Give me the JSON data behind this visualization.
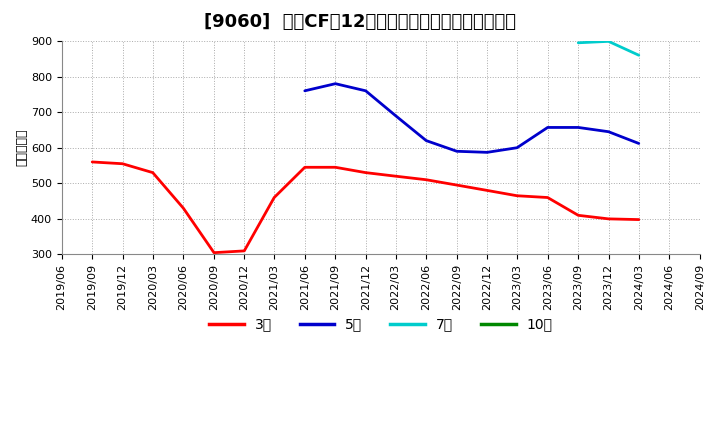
{
  "title": "[9060]  投資CFの12か月移動合計の標準偏差の推移",
  "ylabel": "（百万円）",
  "ylim": [
    300,
    900
  ],
  "yticks": [
    300,
    400,
    500,
    600,
    700,
    800,
    900
  ],
  "background_color": "#ffffff",
  "plot_bg_color": "#ffffff",
  "grid_color": "#aaaaaa",
  "series": {
    "3年": {
      "color": "#ff0000",
      "data": [
        [
          "2019/06",
          null
        ],
        [
          "2019/09",
          560
        ],
        [
          "2019/12",
          555
        ],
        [
          "2020/03",
          530
        ],
        [
          "2020/06",
          430
        ],
        [
          "2020/09",
          305
        ],
        [
          "2020/12",
          310
        ],
        [
          "2021/03",
          460
        ],
        [
          "2021/06",
          545
        ],
        [
          "2021/09",
          545
        ],
        [
          "2021/12",
          530
        ],
        [
          "2022/03",
          520
        ],
        [
          "2022/06",
          510
        ],
        [
          "2022/09",
          495
        ],
        [
          "2022/12",
          480
        ],
        [
          "2023/03",
          465
        ],
        [
          "2023/06",
          460
        ],
        [
          "2023/09",
          410
        ],
        [
          "2023/12",
          400
        ],
        [
          "2024/03",
          398
        ],
        [
          "2024/06",
          null
        ],
        [
          "2024/09",
          null
        ]
      ]
    },
    "5年": {
      "color": "#0000cc",
      "data": [
        [
          "2019/06",
          null
        ],
        [
          "2019/09",
          null
        ],
        [
          "2019/12",
          null
        ],
        [
          "2020/03",
          null
        ],
        [
          "2020/06",
          null
        ],
        [
          "2020/09",
          null
        ],
        [
          "2020/12",
          null
        ],
        [
          "2021/03",
          null
        ],
        [
          "2021/06",
          760
        ],
        [
          "2021/09",
          780
        ],
        [
          "2021/12",
          760
        ],
        [
          "2022/03",
          690
        ],
        [
          "2022/06",
          620
        ],
        [
          "2022/09",
          590
        ],
        [
          "2022/12",
          587
        ],
        [
          "2023/03",
          600
        ],
        [
          "2023/06",
          657
        ],
        [
          "2023/09",
          657
        ],
        [
          "2023/12",
          645
        ],
        [
          "2024/03",
          612
        ],
        [
          "2024/06",
          null
        ],
        [
          "2024/09",
          null
        ]
      ]
    },
    "7年": {
      "color": "#00cccc",
      "data": [
        [
          "2019/06",
          null
        ],
        [
          "2019/09",
          null
        ],
        [
          "2019/12",
          null
        ],
        [
          "2020/03",
          null
        ],
        [
          "2020/06",
          null
        ],
        [
          "2020/09",
          null
        ],
        [
          "2020/12",
          null
        ],
        [
          "2021/03",
          null
        ],
        [
          "2021/06",
          null
        ],
        [
          "2021/09",
          null
        ],
        [
          "2021/12",
          null
        ],
        [
          "2022/03",
          null
        ],
        [
          "2022/06",
          null
        ],
        [
          "2022/09",
          null
        ],
        [
          "2022/12",
          null
        ],
        [
          "2023/03",
          null
        ],
        [
          "2023/06",
          null
        ],
        [
          "2023/09",
          895
        ],
        [
          "2023/12",
          899
        ],
        [
          "2024/03",
          860
        ],
        [
          "2024/06",
          null
        ],
        [
          "2024/09",
          null
        ]
      ]
    },
    "10年": {
      "color": "#008800",
      "data": [
        [
          "2019/06",
          null
        ],
        [
          "2019/09",
          null
        ],
        [
          "2019/12",
          null
        ],
        [
          "2020/03",
          null
        ],
        [
          "2020/06",
          null
        ],
        [
          "2020/09",
          null
        ],
        [
          "2020/12",
          null
        ],
        [
          "2021/03",
          null
        ],
        [
          "2021/06",
          null
        ],
        [
          "2021/09",
          null
        ],
        [
          "2021/12",
          null
        ],
        [
          "2022/03",
          null
        ],
        [
          "2022/06",
          null
        ],
        [
          "2022/09",
          null
        ],
        [
          "2022/12",
          null
        ],
        [
          "2023/03",
          null
        ],
        [
          "2023/06",
          null
        ],
        [
          "2023/09",
          null
        ],
        [
          "2023/12",
          null
        ],
        [
          "2024/03",
          null
        ],
        [
          "2024/06",
          null
        ],
        [
          "2024/09",
          null
        ]
      ]
    }
  },
  "legend_labels": [
    "3年",
    "5年",
    "7年",
    "10年"
  ],
  "legend_colors": [
    "#ff0000",
    "#0000cc",
    "#00cccc",
    "#008800"
  ],
  "title_fontsize": 13,
  "axis_fontsize": 9,
  "tick_fontsize": 8
}
